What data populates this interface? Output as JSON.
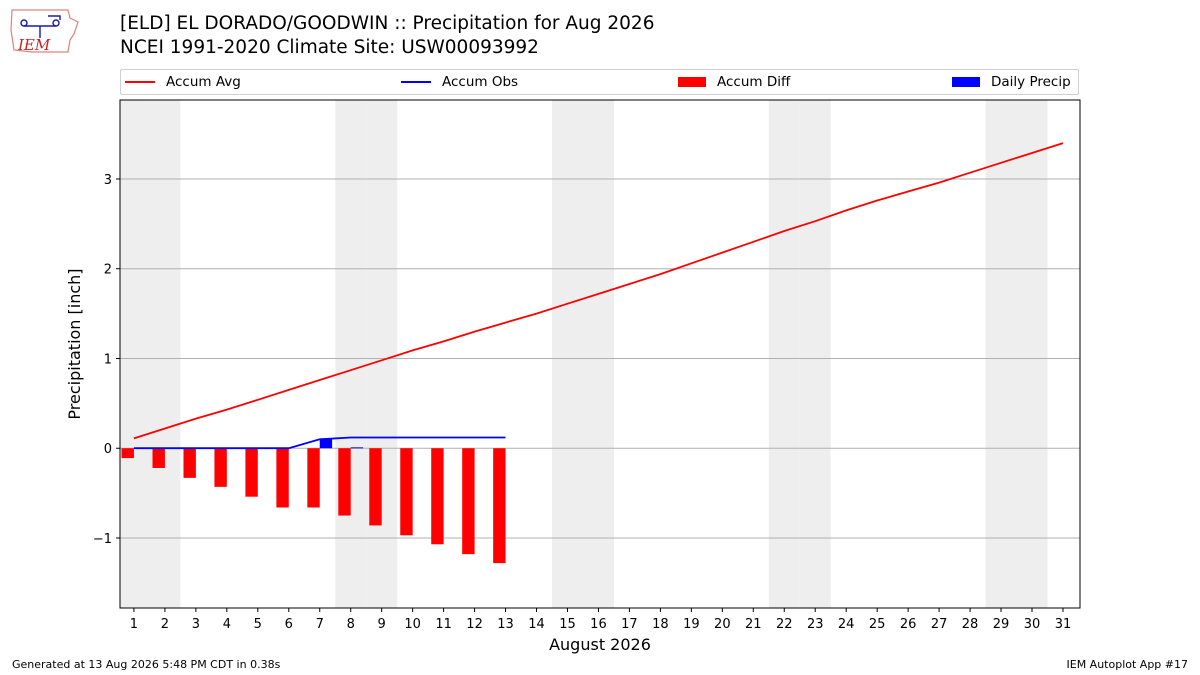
{
  "header": {
    "title_line1": "[ELD] EL DORADO/GOODWIN :: Precipitation for Aug 2026",
    "title_line2": "NCEI 1991-2020 Climate Site: USW00093992",
    "logo_text": "IEM"
  },
  "footer": {
    "generated": "Generated at 13 Aug 2026 5:48 PM CDT in 0.38s",
    "app": "IEM Autoplot App #17"
  },
  "colors": {
    "avg": "#ff0000",
    "obs": "#0000ff",
    "diff": "#ff0000",
    "daily": "#0000ff",
    "weekend_shade": "#eeeeee",
    "grid": "#b0b0b0"
  },
  "chart_data": {
    "type": "line",
    "xlabel": "August 2026",
    "ylabel": "Precipitation [inch]",
    "ylim": [
      -1.78,
      3.88
    ],
    "xlim": [
      0.55,
      31.55
    ],
    "yticks": [
      -1,
      0,
      1,
      2,
      3
    ],
    "ytick_labels": [
      "−1",
      "0",
      "1",
      "2",
      "3"
    ],
    "grid": "horizontal",
    "legend_placement": "top (above plot, 4 columns)",
    "x": [
      1,
      2,
      3,
      4,
      5,
      6,
      7,
      8,
      9,
      10,
      11,
      12,
      13,
      14,
      15,
      16,
      17,
      18,
      19,
      20,
      21,
      22,
      23,
      24,
      25,
      26,
      27,
      28,
      29,
      30,
      31
    ],
    "xtick_labels": [
      "1",
      "2",
      "3",
      "4",
      "5",
      "6",
      "7",
      "8",
      "9",
      "10",
      "11",
      "12",
      "13",
      "14",
      "15",
      "16",
      "17",
      "18",
      "19",
      "20",
      "21",
      "22",
      "23",
      "24",
      "25",
      "26",
      "27",
      "28",
      "29",
      "30",
      "31"
    ],
    "weekend_days": [
      1,
      2,
      8,
      9,
      15,
      16,
      22,
      23,
      29,
      30
    ],
    "series": [
      {
        "name": "Accum Avg",
        "kind": "line",
        "x": [
          1,
          2,
          3,
          4,
          5,
          6,
          7,
          8,
          9,
          10,
          11,
          12,
          13,
          14,
          15,
          16,
          17,
          18,
          19,
          20,
          21,
          22,
          23,
          24,
          25,
          26,
          27,
          28,
          29,
          30,
          31
        ],
        "values": [
          0.11,
          0.22,
          0.33,
          0.43,
          0.54,
          0.65,
          0.76,
          0.87,
          0.98,
          1.09,
          1.19,
          1.3,
          1.4,
          1.5,
          1.61,
          1.72,
          1.83,
          1.94,
          2.06,
          2.18,
          2.3,
          2.42,
          2.53,
          2.65,
          2.76,
          2.86,
          2.96,
          3.07,
          3.18,
          3.29,
          3.4
        ]
      },
      {
        "name": "Accum Obs",
        "kind": "line",
        "x": [
          1,
          2,
          3,
          4,
          5,
          6,
          7,
          8,
          9,
          10,
          11,
          12,
          13
        ],
        "values": [
          0,
          0,
          0,
          0,
          0,
          0,
          0.1,
          0.12,
          0.12,
          0.12,
          0.12,
          0.12,
          0.12
        ]
      },
      {
        "name": "Accum Diff",
        "kind": "bar",
        "x": [
          1,
          2,
          3,
          4,
          5,
          6,
          7,
          8,
          9,
          10,
          11,
          12,
          13
        ],
        "values": [
          -0.11,
          -0.22,
          -0.33,
          -0.43,
          -0.54,
          -0.66,
          -0.66,
          -0.75,
          -0.86,
          -0.97,
          -1.07,
          -1.18,
          -1.28
        ]
      },
      {
        "name": "Daily Precip",
        "kind": "bar",
        "x": [
          1,
          2,
          3,
          4,
          5,
          6,
          7,
          8,
          9,
          10,
          11,
          12,
          13
        ],
        "values": [
          0,
          0,
          0,
          0,
          0,
          0,
          0.1,
          0.01,
          0,
          0,
          0,
          0,
          0
        ]
      }
    ]
  }
}
